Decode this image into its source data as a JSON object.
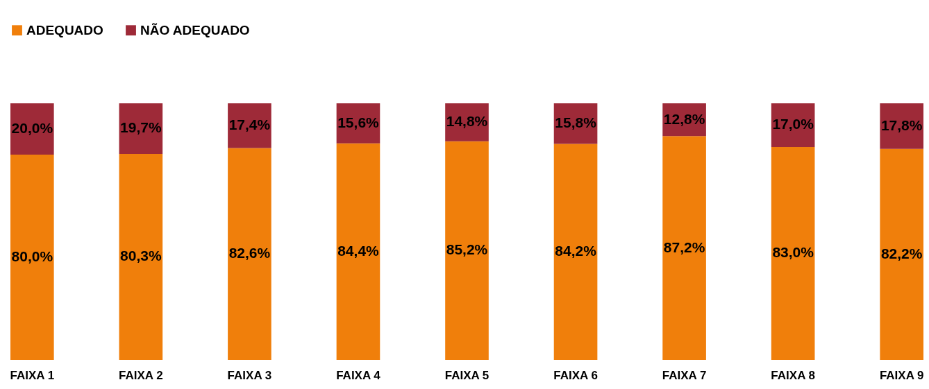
{
  "chart_data": {
    "type": "bar",
    "stacked": true,
    "legend": "top",
    "tick_labels": "x",
    "ylim": [
      0,
      100
    ],
    "categories": [
      "FAIXA 1",
      "FAIXA 2",
      "FAIXA 3",
      "FAIXA 4",
      "FAIXA 5",
      "FAIXA 6",
      "FAIXA 7",
      "FAIXA 8",
      "FAIXA 9"
    ],
    "series": [
      {
        "name": "ADEQUADO",
        "color": "#f07f0b",
        "values": [
          80.0,
          80.3,
          82.6,
          84.4,
          85.2,
          84.2,
          87.2,
          83.0,
          82.2
        ],
        "value_labels": [
          "80,0%",
          "80,3%",
          "82,6%",
          "84,4%",
          "85,2%",
          "84,2%",
          "87,2%",
          "83,0%",
          "82,2%"
        ]
      },
      {
        "name": "NÃO ADEQUADO",
        "color": "#9e2a38",
        "values": [
          20.0,
          19.7,
          17.4,
          15.6,
          14.8,
          15.8,
          12.8,
          17.0,
          17.8
        ],
        "value_labels": [
          "20,0%",
          "19,7%",
          "17,4%",
          "15,6%",
          "14,8%",
          "15,8%",
          "12,8%",
          "17,0%",
          "17,8%"
        ]
      }
    ]
  }
}
